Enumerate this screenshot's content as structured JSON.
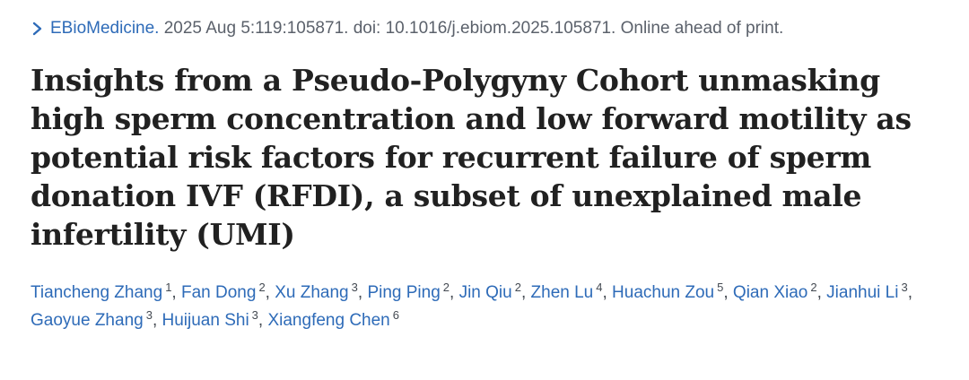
{
  "citation": {
    "journal": "EBioMedicine.",
    "details": " 2025 Aug 5:119:105871. doi: 10.1016/j.ebiom.2025.105871. Online ahead of print."
  },
  "title": "Insights from a Pseudo-Polygyny Cohort unmasking high sperm concentration and low forward motility as potential risk factors for recurrent failure of sperm donation IVF (RFDI), a subset of unexplained male infertility (UMI)",
  "authors": [
    {
      "name": "Tiancheng Zhang",
      "aff": "1"
    },
    {
      "name": "Fan Dong",
      "aff": "2"
    },
    {
      "name": "Xu Zhang",
      "aff": "3"
    },
    {
      "name": "Ping Ping",
      "aff": "2"
    },
    {
      "name": "Jin Qiu",
      "aff": "2"
    },
    {
      "name": "Zhen Lu",
      "aff": "4"
    },
    {
      "name": "Huachun Zou",
      "aff": "5"
    },
    {
      "name": "Qian Xiao",
      "aff": "2"
    },
    {
      "name": "Jianhui Li",
      "aff": "3"
    },
    {
      "name": "Gaoyue Zhang",
      "aff": "3"
    },
    {
      "name": "Huijuan Shi",
      "aff": "3"
    },
    {
      "name": "Xiangfeng Chen",
      "aff": "6"
    }
  ],
  "separator": ",",
  "colors": {
    "link": "#2e6bb8",
    "title": "#212121",
    "meta": "#5b616b"
  },
  "icons": {
    "journal_link": "chevron-right-icon"
  }
}
